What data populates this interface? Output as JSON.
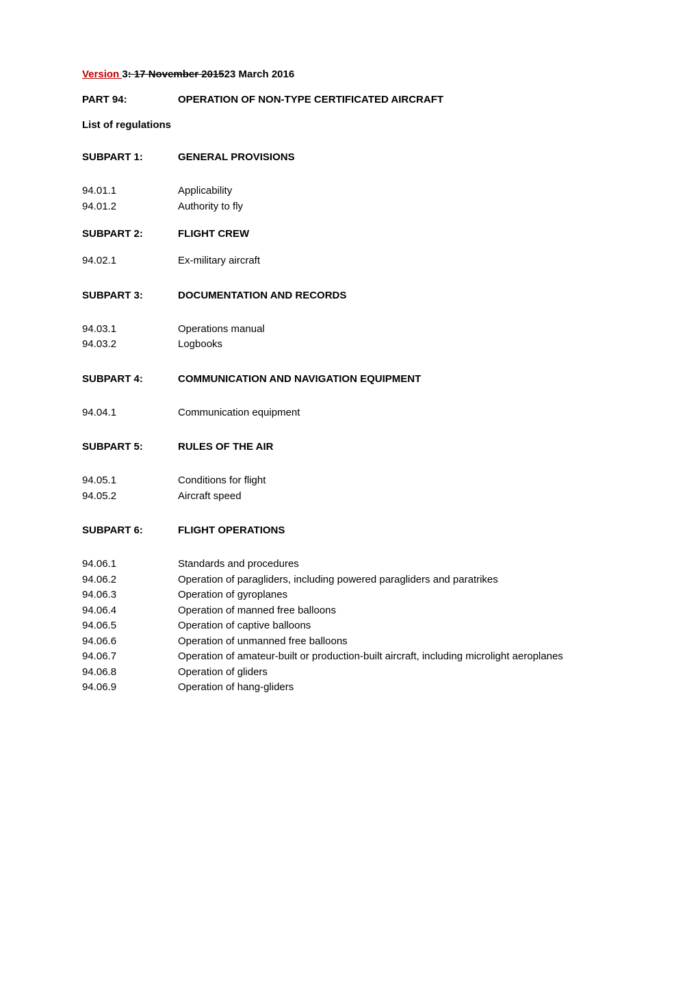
{
  "version": {
    "prefix": "Version ",
    "number": "3",
    "colon_strike": ": ",
    "old_date": "17 November  2015",
    "new_date": "23 March 2016"
  },
  "part": {
    "label": "PART 94:",
    "title": "OPERATION OF NON-TYPE CERTIFICATED AIRCRAFT"
  },
  "list_label": "List of regulations",
  "subparts": [
    {
      "label": "SUBPART 1:",
      "title": "GENERAL PROVISIONS",
      "spacing": "wide",
      "items": [
        {
          "num": "94.01.1",
          "title": "Applicability"
        },
        {
          "num": "94.01.2",
          "title": "Authority to fly"
        }
      ]
    },
    {
      "label": "SUBPART 2:",
      "title": "FLIGHT CREW",
      "spacing": "tight",
      "items": [
        {
          "num": "94.02.1",
          "title": "Ex-military aircraft"
        }
      ]
    },
    {
      "label": "SUBPART 3:",
      "title": "DOCUMENTATION AND RECORDS",
      "spacing": "wide",
      "items": [
        {
          "num": "94.03.1",
          "title": "Operations manual"
        },
        {
          "num": "94.03.2",
          "title": "Logbooks"
        }
      ]
    },
    {
      "label": "SUBPART 4:",
      "title": "COMMUNICATION AND NAVIGATION EQUIPMENT",
      "spacing": "wide",
      "items": [
        {
          "num": "94.04.1",
          "title": "Communication equipment"
        }
      ]
    },
    {
      "label": "SUBPART 5:",
      "title": "RULES OF THE AIR",
      "spacing": "wide",
      "items": [
        {
          "num": "94.05.1",
          "title": "Conditions for flight"
        },
        {
          "num": "94.05.2",
          "title": "Aircraft speed"
        }
      ]
    },
    {
      "label": "SUBPART 6:",
      "title": "FLIGHT OPERATIONS",
      "spacing": "wide",
      "items": [
        {
          "num": "94.06.1",
          "title": "Standards and procedures"
        },
        {
          "num": "94.06.2",
          "title": "Operation of paragliders, including powered paragliders and paratrikes"
        },
        {
          "num": "94.06.3",
          "title": "Operation of gyroplanes"
        },
        {
          "num": "94.06.4",
          "title": "Operation of manned free balloons"
        },
        {
          "num": "94.06.5",
          "title": "Operation of captive balloons"
        },
        {
          "num": "94.06.6",
          "title": "Operation of unmanned free balloons"
        },
        {
          "num": "94.06.7",
          "title": "Operation of amateur-built or production-built aircraft, including microlight aeroplanes"
        },
        {
          "num": "94.06.8",
          "title": "Operation of gliders"
        },
        {
          "num": "94.06.9",
          "title": "Operation of hang-gliders"
        }
      ]
    }
  ],
  "colors": {
    "version_prefix": "#c00000",
    "text": "#000000",
    "background": "#ffffff"
  },
  "typography": {
    "body_fontsize": 15,
    "font_family": "Arial"
  }
}
